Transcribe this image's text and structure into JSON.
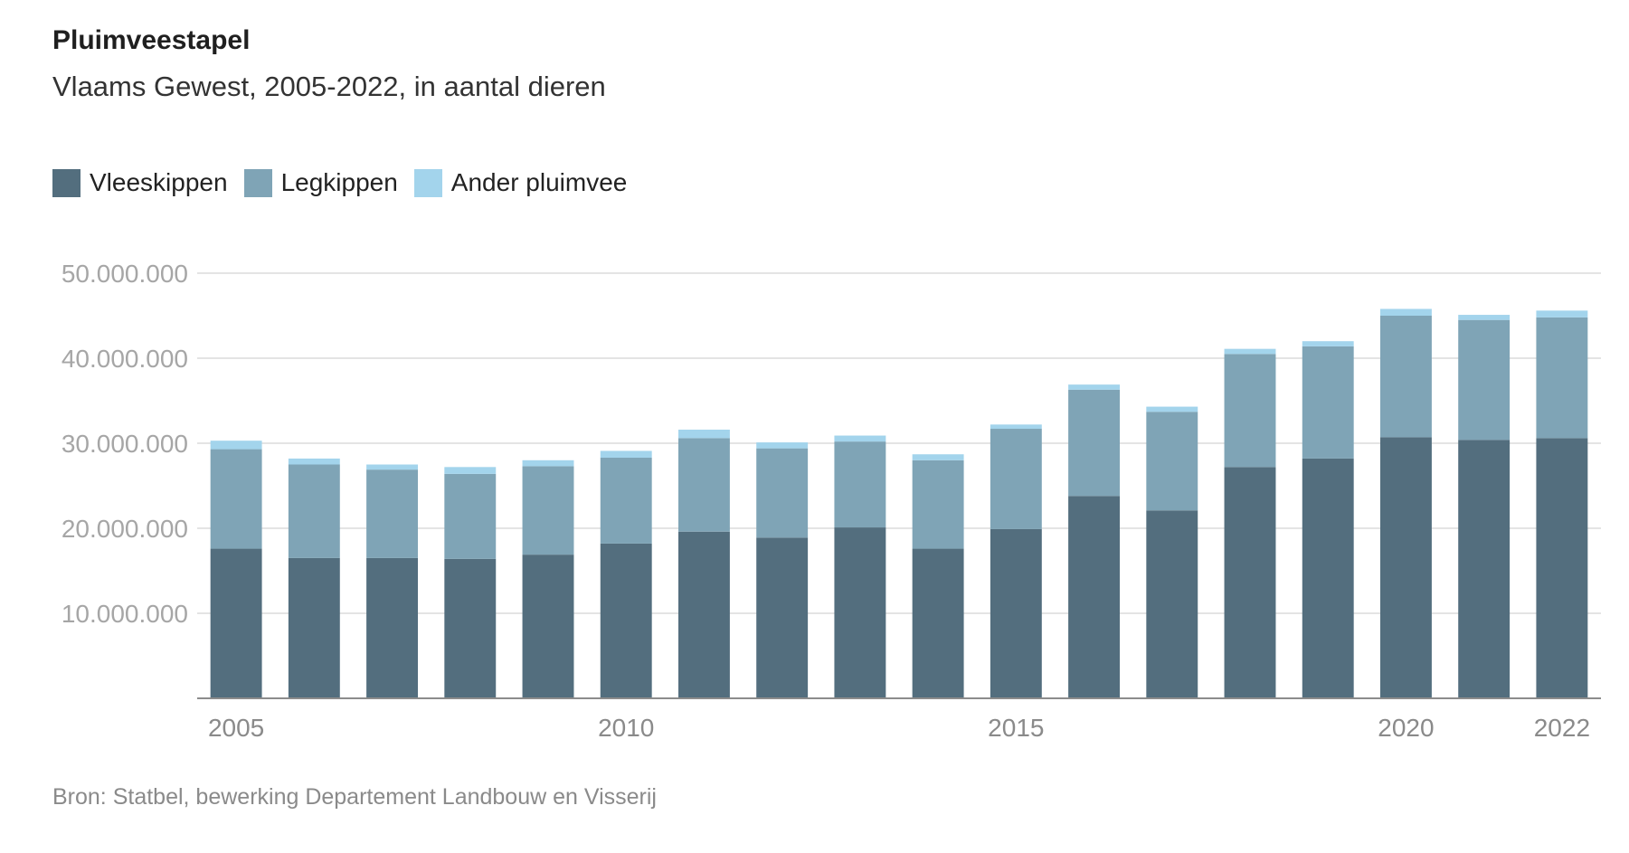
{
  "title": "Pluimveestapel",
  "subtitle": "Vlaams Gewest, 2005-2022, in aantal dieren",
  "source": "Bron: Statbel, bewerking Departement Landbouw en Visserij",
  "chart_data": {
    "type": "bar",
    "stacked": true,
    "categories": [
      "2005",
      "2006",
      "2007",
      "2008",
      "2009",
      "2010",
      "2011",
      "2012",
      "2013",
      "2014",
      "2015",
      "2016",
      "2017",
      "2018",
      "2019",
      "2020",
      "2021",
      "2022"
    ],
    "x_tick_labels": [
      "2005",
      "2010",
      "2015",
      "2020",
      "2022"
    ],
    "series": [
      {
        "name": "Vleeskippen",
        "color": "#536e7e",
        "values": [
          17600000,
          16500000,
          16500000,
          16400000,
          16900000,
          18200000,
          19600000,
          18900000,
          20100000,
          17600000,
          19900000,
          23800000,
          22100000,
          27200000,
          28200000,
          30700000,
          30400000,
          30600000
        ]
      },
      {
        "name": "Legkippen",
        "color": "#7fa4b6",
        "values": [
          11700000,
          11000000,
          10400000,
          10000000,
          10400000,
          10100000,
          11000000,
          10500000,
          10100000,
          10400000,
          11800000,
          12500000,
          11600000,
          13300000,
          13200000,
          14300000,
          14100000,
          14200000
        ]
      },
      {
        "name": "Ander pluimvee",
        "color": "#a3d4ec",
        "values": [
          1000000,
          700000,
          600000,
          800000,
          700000,
          800000,
          1000000,
          700000,
          700000,
          700000,
          500000,
          600000,
          600000,
          600000,
          600000,
          800000,
          600000,
          800000
        ]
      }
    ],
    "ylim": [
      0,
      50000000
    ],
    "y_ticks": [
      10000000,
      20000000,
      30000000,
      40000000,
      50000000
    ],
    "y_tick_labels": [
      "10.000.000",
      "20.000.000",
      "30.000.000",
      "40.000.000",
      "50.000.000"
    ],
    "grid": true,
    "legend_position": "top-left",
    "xlabel": "",
    "ylabel": ""
  }
}
